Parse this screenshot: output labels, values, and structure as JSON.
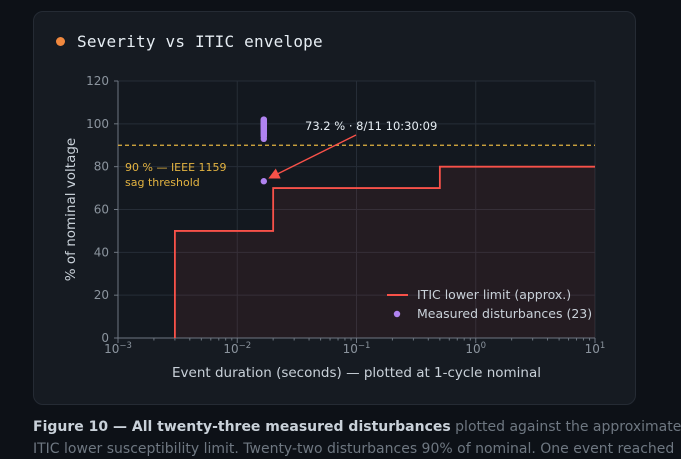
{
  "card": {
    "title": "Severity vs ITIC envelope",
    "accent_color": "#f0883e"
  },
  "caption": {
    "bold": "Figure 10 — All twenty-three measured disturbances",
    "rest": " plotted against the approximate",
    "line2": "ITIC lower susceptibility limit. Twenty-two disturbances 90% of nominal. One event reached"
  },
  "chart_data": {
    "type": "scatter",
    "xlabel": "Event duration (seconds) — plotted at 1-cycle nominal",
    "ylabel": "% of nominal voltage",
    "xscale": "log",
    "xlim": [
      0.001,
      10
    ],
    "ylim": [
      0,
      120
    ],
    "x_ticks": [
      {
        "value": 0.001,
        "base": "10",
        "exp": "−3"
      },
      {
        "value": 0.01,
        "base": "10",
        "exp": "−2"
      },
      {
        "value": 0.1,
        "base": "10",
        "exp": "−1"
      },
      {
        "value": 1,
        "base": "10",
        "exp": "0"
      },
      {
        "value": 10,
        "base": "10",
        "exp": "1"
      }
    ],
    "y_ticks": [
      0,
      20,
      40,
      60,
      80,
      100,
      120
    ],
    "grid": true,
    "legend_position": "bottom-right",
    "series": [
      {
        "name": "ITIC lower limit (approx.)",
        "kind": "step-line",
        "color": "#f85149",
        "points": [
          [
            0.003,
            0
          ],
          [
            0.003,
            50
          ],
          [
            0.02,
            50
          ],
          [
            0.02,
            70
          ],
          [
            0.5,
            70
          ],
          [
            0.5,
            80
          ],
          [
            10,
            80
          ]
        ]
      },
      {
        "name": "Measured disturbances (23)",
        "kind": "scatter",
        "color": "#b083f0",
        "points": [
          [
            0.0167,
            93.0
          ],
          [
            0.0167,
            94.1
          ],
          [
            0.0167,
            94.8
          ],
          [
            0.0167,
            95.4
          ],
          [
            0.0167,
            96.0
          ],
          [
            0.0167,
            96.5
          ],
          [
            0.0167,
            97.0
          ],
          [
            0.0167,
            97.4
          ],
          [
            0.0167,
            97.8
          ],
          [
            0.0167,
            98.2
          ],
          [
            0.0167,
            98.6
          ],
          [
            0.0167,
            99.0
          ],
          [
            0.0167,
            99.3
          ],
          [
            0.0167,
            99.6
          ],
          [
            0.0167,
            99.9
          ],
          [
            0.0167,
            100.2
          ],
          [
            0.0167,
            100.5
          ],
          [
            0.0167,
            100.8
          ],
          [
            0.0167,
            101.1
          ],
          [
            0.0167,
            101.4
          ],
          [
            0.0167,
            101.7
          ],
          [
            0.0167,
            102.0
          ],
          [
            0.0167,
            73.2
          ]
        ]
      }
    ],
    "threshold": {
      "value": 90,
      "color": "#e3b341",
      "label_line1": "90 % — IEEE 1159",
      "label_line2": "sag threshold"
    },
    "annotation": {
      "text": "73.2 % · 8/11 10:30:09",
      "x": 0.0167,
      "y": 73.2
    }
  }
}
